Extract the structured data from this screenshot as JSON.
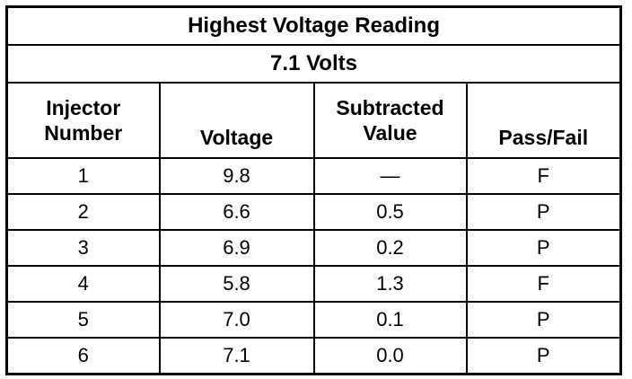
{
  "title": "Highest Voltage Reading",
  "subtitle": "7.1 Volts",
  "columns": [
    {
      "line1": "Injector",
      "line2": "Number"
    },
    {
      "line1": "Voltage",
      "line2": ""
    },
    {
      "line1": "Subtracted",
      "line2": "Value"
    },
    {
      "line1": "Pass/Fail",
      "line2": ""
    }
  ],
  "rows": [
    {
      "injector": "1",
      "voltage": "9.8",
      "subtracted": "—",
      "result": "F"
    },
    {
      "injector": "2",
      "voltage": "6.6",
      "subtracted": "0.5",
      "result": "P"
    },
    {
      "injector": "3",
      "voltage": "6.9",
      "subtracted": "0.2",
      "result": "P"
    },
    {
      "injector": "4",
      "voltage": "5.8",
      "subtracted": "1.3",
      "result": "F"
    },
    {
      "injector": "5",
      "voltage": "7.0",
      "subtracted": "0.1",
      "result": "P"
    },
    {
      "injector": "6",
      "voltage": "7.1",
      "subtracted": "0.0",
      "result": "P"
    }
  ]
}
